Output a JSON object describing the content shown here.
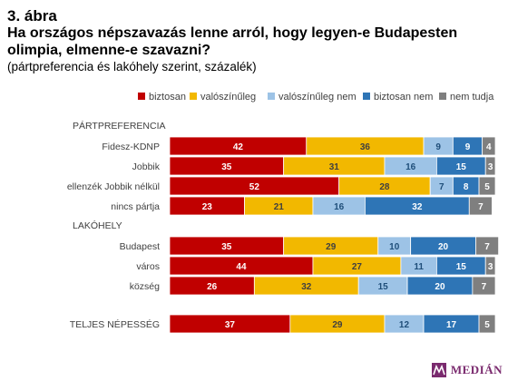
{
  "figure": {
    "number": "3. ábra",
    "title_line1": "Ha országos népszavazás lenne arról, hogy legyen-e Budapesten",
    "title_line2": "olimpia, elmenne-e szavazni?",
    "subtitle": "(pártpreferencia és lakóhely szerint, százalék)"
  },
  "logo": {
    "text": "MEDIÁN"
  },
  "colors": {
    "biztosan": "#c00000",
    "valoszinuleg": "#f2b800",
    "valoszinuleg_nem": "#9dc3e6",
    "biztosan_nem": "#2e75b6",
    "nem_tudja": "#7f7f7f"
  },
  "chart_data": {
    "type": "bar",
    "orientation": "horizontal",
    "stacked": true,
    "xlim": [
      0,
      100
    ],
    "legend_position": "top",
    "group_headers": [
      {
        "label": "PÁRTPREFERENCIA",
        "before_row": 0
      },
      {
        "label": "LAKÓHELY",
        "before_row": 4
      }
    ],
    "categories": [
      "Fidesz-KDNP",
      "Jobbik",
      "ellenzék Jobbik nélkül",
      "nincs pártja",
      "Budapest",
      "város",
      "község",
      "TELJES NÉPESSÉG"
    ],
    "series": [
      {
        "name": "biztosan",
        "color_key": "biztosan",
        "values": [
          42,
          35,
          52,
          23,
          35,
          44,
          26,
          37
        ]
      },
      {
        "name": "valószínűleg",
        "color_key": "valoszinuleg",
        "values": [
          36,
          31,
          28,
          21,
          29,
          27,
          32,
          29
        ]
      },
      {
        "name": "valószínűleg nem",
        "color_key": "valoszinuleg_nem",
        "values": [
          9,
          16,
          7,
          16,
          10,
          11,
          15,
          12
        ]
      },
      {
        "name": "biztosan nem",
        "color_key": "biztosan_nem",
        "values": [
          9,
          15,
          8,
          32,
          20,
          15,
          20,
          17
        ]
      },
      {
        "name": "nem tudja",
        "color_key": "nem_tudja",
        "values": [
          4,
          3,
          5,
          7,
          7,
          3,
          7,
          5
        ]
      }
    ]
  }
}
